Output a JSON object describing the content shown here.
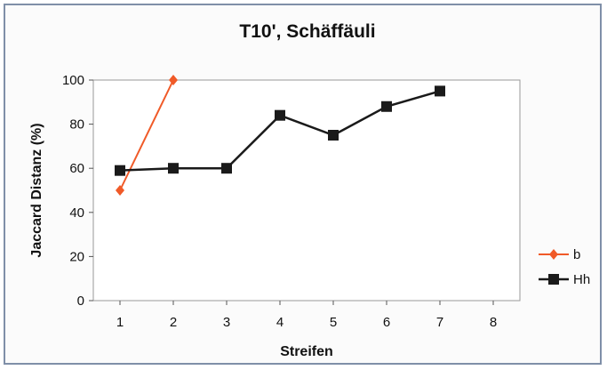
{
  "chart_data": {
    "type": "line",
    "title": "T10', Schäffäuli",
    "xlabel": "Streifen",
    "ylabel": "Jaccard Distanz (%)",
    "categories": [
      "1",
      "2",
      "3",
      "4",
      "5",
      "6",
      "7",
      "8"
    ],
    "x": [
      1,
      2,
      3,
      4,
      5,
      6,
      7,
      8
    ],
    "xlim": [
      0.5,
      8.5
    ],
    "ylim": [
      0,
      100
    ],
    "yticks": [
      "0",
      "20",
      "40",
      "60",
      "80",
      "100"
    ],
    "grid": false,
    "legend_position": "right",
    "series": [
      {
        "name": "b",
        "marker": "diamond",
        "color": "#f05a28",
        "values": [
          50,
          100,
          null,
          null,
          null,
          null,
          null,
          null
        ]
      },
      {
        "name": "Hh",
        "marker": "square",
        "color": "#1a1a1a",
        "values": [
          59,
          60,
          60,
          84,
          75,
          88,
          95,
          null
        ]
      }
    ]
  }
}
